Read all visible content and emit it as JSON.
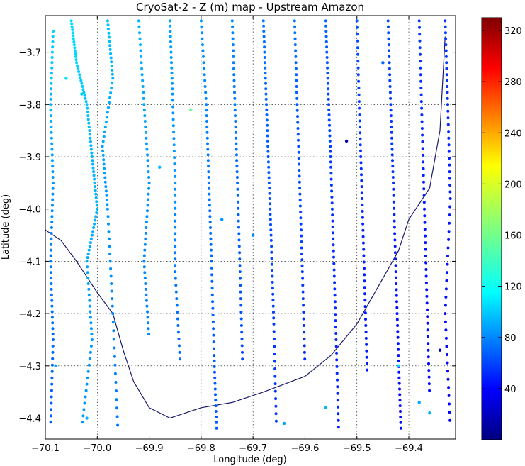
{
  "chart_data": {
    "type": "scatter",
    "title": "CryoSat-2 - Z (m) map - Upstream Amazon",
    "xlabel": "Longitude (deg)",
    "ylabel": "Latitude (deg)",
    "xlim": [
      -70.1,
      -69.31
    ],
    "ylim": [
      -4.44,
      -3.63
    ],
    "grid": true,
    "x_ticks": [
      -70.1,
      -70.0,
      -69.9,
      -69.8,
      -69.7,
      -69.6,
      -69.5,
      -69.4
    ],
    "x_tick_labels": [
      "−70.1",
      "−70.0",
      "−69.9",
      "−69.8",
      "−69.7",
      "−69.6",
      "−69.5",
      "−69.4"
    ],
    "y_ticks": [
      -3.7,
      -3.8,
      -3.9,
      -4.0,
      -4.1,
      -4.2,
      -4.3,
      -4.4
    ],
    "y_tick_labels": [
      "−3.7",
      "−3.8",
      "−3.9",
      "−4.0",
      "−4.1",
      "−4.2",
      "−4.3",
      "−4.4"
    ],
    "colorbar": {
      "label": "",
      "colormap": "jet",
      "range": [
        0,
        330
      ],
      "ticks": [
        40,
        80,
        120,
        160,
        200,
        240,
        280,
        320
      ],
      "tick_labels": [
        "40",
        "80",
        "120",
        "160",
        "200",
        "240",
        "280",
        "320"
      ]
    },
    "tracks": [
      {
        "x": [
          -70.085,
          -70.09,
          -70.085,
          -70.09,
          -70.085,
          -70.09
        ],
        "y": [
          -3.66,
          -3.8,
          -3.95,
          -4.1,
          -4.25,
          -4.42
        ],
        "z": [
          110,
          100,
          90,
          80,
          75,
          70
        ]
      },
      {
        "x": [
          -70.05,
          -70.04,
          -70.02,
          -70.01,
          -70.0,
          -70.02,
          -70.01,
          -70.03
        ],
        "y": [
          -3.64,
          -3.72,
          -3.8,
          -3.9,
          -4.0,
          -4.1,
          -4.25,
          -4.42
        ],
        "z": [
          115,
          110,
          105,
          100,
          100,
          95,
          90,
          90
        ]
      },
      {
        "x": [
          -69.98,
          -69.97,
          -69.99,
          -69.98,
          -69.97,
          -69.96
        ],
        "y": [
          -3.64,
          -3.75,
          -3.88,
          -4.0,
          -4.2,
          -4.43
        ],
        "z": [
          105,
          100,
          95,
          90,
          85,
          80
        ]
      },
      {
        "x": [
          -69.92,
          -69.91,
          -69.9,
          -69.91,
          -69.9
        ],
        "y": [
          -3.64,
          -3.8,
          -3.95,
          -4.1,
          -4.25
        ],
        "z": [
          100,
          95,
          90,
          85,
          85
        ]
      },
      {
        "x": [
          -69.86,
          -69.855,
          -69.85,
          -69.85,
          -69.84
        ],
        "y": [
          -3.64,
          -3.78,
          -3.95,
          -4.12,
          -4.3
        ],
        "z": [
          95,
          90,
          90,
          80,
          75
        ]
      },
      {
        "x": [
          -69.8,
          -69.79,
          -69.785,
          -69.78,
          -69.775,
          -69.77
        ],
        "y": [
          -3.64,
          -3.8,
          -3.95,
          -4.1,
          -4.28,
          -4.43
        ],
        "z": [
          90,
          85,
          80,
          75,
          70,
          70
        ]
      },
      {
        "x": [
          -69.74,
          -69.735,
          -69.73,
          -69.725,
          -69.72
        ],
        "y": [
          -3.64,
          -3.8,
          -3.95,
          -4.12,
          -4.3
        ],
        "z": [
          85,
          80,
          75,
          70,
          65
        ]
      },
      {
        "x": [
          -69.68,
          -69.675,
          -69.67,
          -69.665,
          -69.66,
          -69.655
        ],
        "y": [
          -3.64,
          -3.78,
          -3.92,
          -4.06,
          -4.22,
          -4.42
        ],
        "z": [
          80,
          75,
          70,
          65,
          60,
          60
        ]
      },
      {
        "x": [
          -69.62,
          -69.615,
          -69.61,
          -69.605,
          -69.6
        ],
        "y": [
          -3.64,
          -3.8,
          -3.96,
          -4.12,
          -4.3
        ],
        "z": [
          80,
          70,
          65,
          60,
          55
        ]
      },
      {
        "x": [
          -69.56,
          -69.555,
          -69.55,
          -69.545,
          -69.54,
          -69.535
        ],
        "y": [
          -3.64,
          -3.78,
          -3.92,
          -4.08,
          -4.25,
          -4.43
        ],
        "z": [
          75,
          65,
          60,
          55,
          55,
          50
        ]
      },
      {
        "x": [
          -69.5,
          -69.495,
          -69.49,
          -69.485,
          -69.48
        ],
        "y": [
          -3.64,
          -3.82,
          -3.98,
          -4.15,
          -4.32
        ],
        "z": [
          70,
          60,
          55,
          50,
          50
        ]
      },
      {
        "x": [
          -69.44,
          -69.435,
          -69.43,
          -69.425,
          -69.42,
          -69.415
        ],
        "y": [
          -3.64,
          -3.8,
          -3.95,
          -4.12,
          -4.28,
          -4.43
        ],
        "z": [
          65,
          60,
          55,
          50,
          45,
          45
        ]
      },
      {
        "x": [
          -69.38,
          -69.375,
          -69.37,
          -69.365,
          -69.36
        ],
        "y": [
          -3.64,
          -3.82,
          -4.0,
          -4.18,
          -4.36
        ],
        "z": [
          60,
          55,
          50,
          45,
          45
        ]
      },
      {
        "x": [
          -69.33,
          -69.325,
          -69.32,
          -69.33,
          -69.32
        ],
        "y": [
          -3.64,
          -3.8,
          -3.98,
          -4.2,
          -4.42
        ],
        "z": [
          60,
          55,
          50,
          45,
          40
        ]
      }
    ],
    "river_outline": {
      "x": [
        -70.1,
        -70.07,
        -70.04,
        -70.0,
        -69.97,
        -69.95,
        -69.93,
        -69.9,
        -69.86,
        -69.8,
        -69.74,
        -69.68,
        -69.6,
        -69.55,
        -69.5,
        -69.46,
        -69.42,
        -69.4,
        -69.36,
        -69.34,
        -69.33
      ],
      "y": [
        -4.04,
        -4.06,
        -4.1,
        -4.16,
        -4.2,
        -4.27,
        -4.33,
        -4.38,
        -4.4,
        -4.38,
        -4.37,
        -4.35,
        -4.32,
        -4.28,
        -4.22,
        -4.15,
        -4.08,
        -4.02,
        -3.96,
        -3.85,
        -3.67
      ],
      "z": 60
    },
    "points": [
      {
        "x": -70.06,
        "y": -3.75,
        "z": 115
      },
      {
        "x": -70.03,
        "y": -3.78,
        "z": 110
      },
      {
        "x": -69.88,
        "y": -3.92,
        "z": 100
      },
      {
        "x": -69.82,
        "y": -3.81,
        "z": 160
      },
      {
        "x": -69.76,
        "y": -4.02,
        "z": 90
      },
      {
        "x": -69.7,
        "y": -4.05,
        "z": 85
      },
      {
        "x": -69.52,
        "y": -3.87,
        "z": 15
      },
      {
        "x": -69.45,
        "y": -3.72,
        "z": 75
      },
      {
        "x": -69.42,
        "y": -4.3,
        "z": 110
      },
      {
        "x": -69.38,
        "y": -4.37,
        "z": 95
      },
      {
        "x": -69.36,
        "y": -4.39,
        "z": 100
      },
      {
        "x": -69.34,
        "y": -4.27,
        "z": 20
      },
      {
        "x": -70.08,
        "y": -4.3,
        "z": 95
      },
      {
        "x": -70.02,
        "y": -4.4,
        "z": 100
      },
      {
        "x": -69.64,
        "y": -4.41,
        "z": 95
      },
      {
        "x": -69.56,
        "y": -4.38,
        "z": 100
      }
    ]
  }
}
